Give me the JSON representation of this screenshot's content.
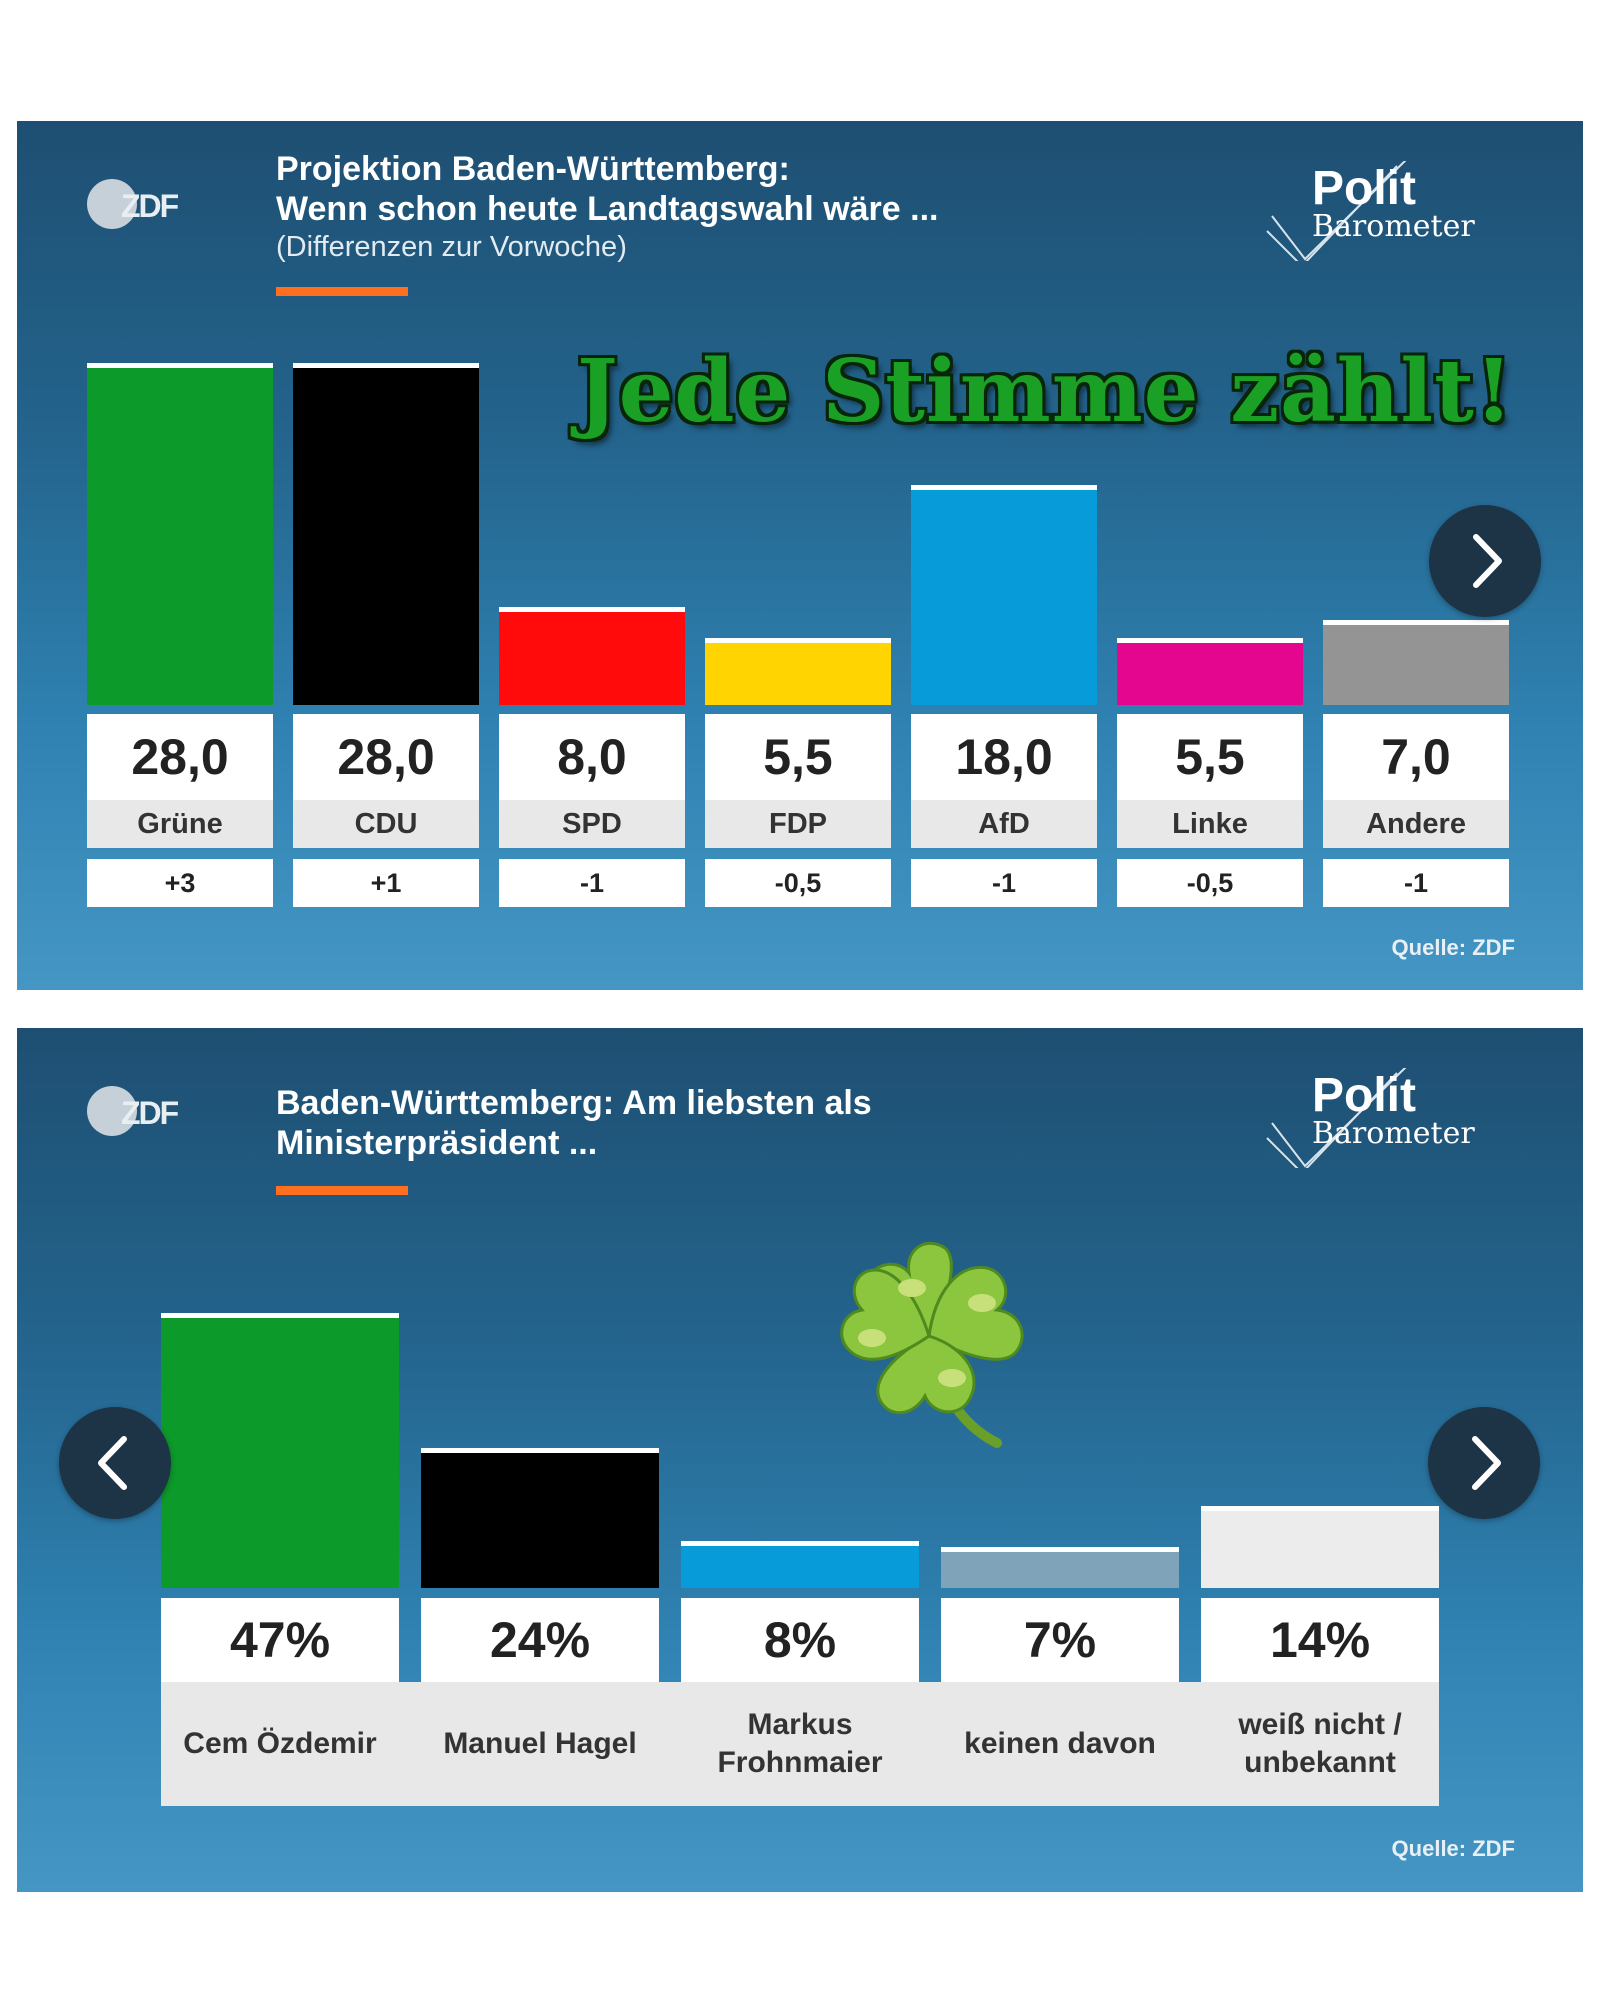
{
  "panel1": {
    "logo": "ZDF",
    "title_line1": "Projektion Baden-Württemberg:",
    "title_line2": "Wenn schon heute Landtagswahl wäre ...",
    "subtitle": "(Differenzen zur Vorwoche)",
    "brand_line1": "Polit",
    "brand_line2": "Barometer",
    "overlay_text": "Jede Stimme zählt!",
    "source": "Quelle: ZDF",
    "nav_next_icon": "chevron-right-icon"
  },
  "panel2": {
    "logo": "ZDF",
    "title_line1": "Baden-Württemberg: Am liebsten als",
    "title_line2": "Ministerpräsident ...",
    "brand_line1": "Polit",
    "brand_line2": "Barometer",
    "decoration_icon": "four-leaf-clover-icon",
    "source": "Quelle: ZDF",
    "nav_prev_icon": "chevron-left-icon",
    "nav_next_icon": "chevron-right-icon"
  },
  "chart_data": [
    {
      "type": "bar",
      "categories": [
        "Grüne",
        "CDU",
        "SPD",
        "FDP",
        "AfD",
        "Linke",
        "Andere"
      ],
      "values": [
        28.0,
        28.0,
        8.0,
        5.5,
        18.0,
        5.5,
        7.0
      ],
      "value_labels": [
        "28,0",
        "28,0",
        "8,0",
        "5,5",
        "18,0",
        "5,5",
        "7,0"
      ],
      "diff_labels": [
        "+3",
        "+1",
        "-1",
        "-0,5",
        "-1",
        "-0,5",
        "-1"
      ],
      "colors": [
        "#0c9a2a",
        "#000000",
        "#ff0b0b",
        "#ffd400",
        "#079bd9",
        "#e5068f",
        "#949494"
      ],
      "title": "Projektion Baden-Württemberg: Wenn schon heute Landtagswahl wäre ...",
      "subtitle": "(Differenzen zur Vorwoche)",
      "grid": false,
      "legend": "none"
    },
    {
      "type": "bar",
      "categories": [
        "Cem Özdemir",
        "Manuel Hagel",
        "Markus Frohnmaier",
        "keinen davon",
        "weiß nicht / unbekannt"
      ],
      "category_lines": [
        [
          "Cem Özdemir"
        ],
        [
          "Manuel Hagel"
        ],
        [
          "Markus",
          "Frohnmaier"
        ],
        [
          "keinen davon"
        ],
        [
          "weiß nicht /",
          "unbekannt"
        ]
      ],
      "values": [
        47,
        24,
        8,
        7,
        14
      ],
      "value_labels": [
        "47%",
        "24%",
        "8%",
        "7%",
        "14%"
      ],
      "colors": [
        "#0c9a2a",
        "#000000",
        "#079bd9",
        "#7fa3b8",
        "#ececec"
      ],
      "title": "Baden-Württemberg: Am liebsten als Ministerpräsident ...",
      "grid": false,
      "legend": "none"
    }
  ]
}
